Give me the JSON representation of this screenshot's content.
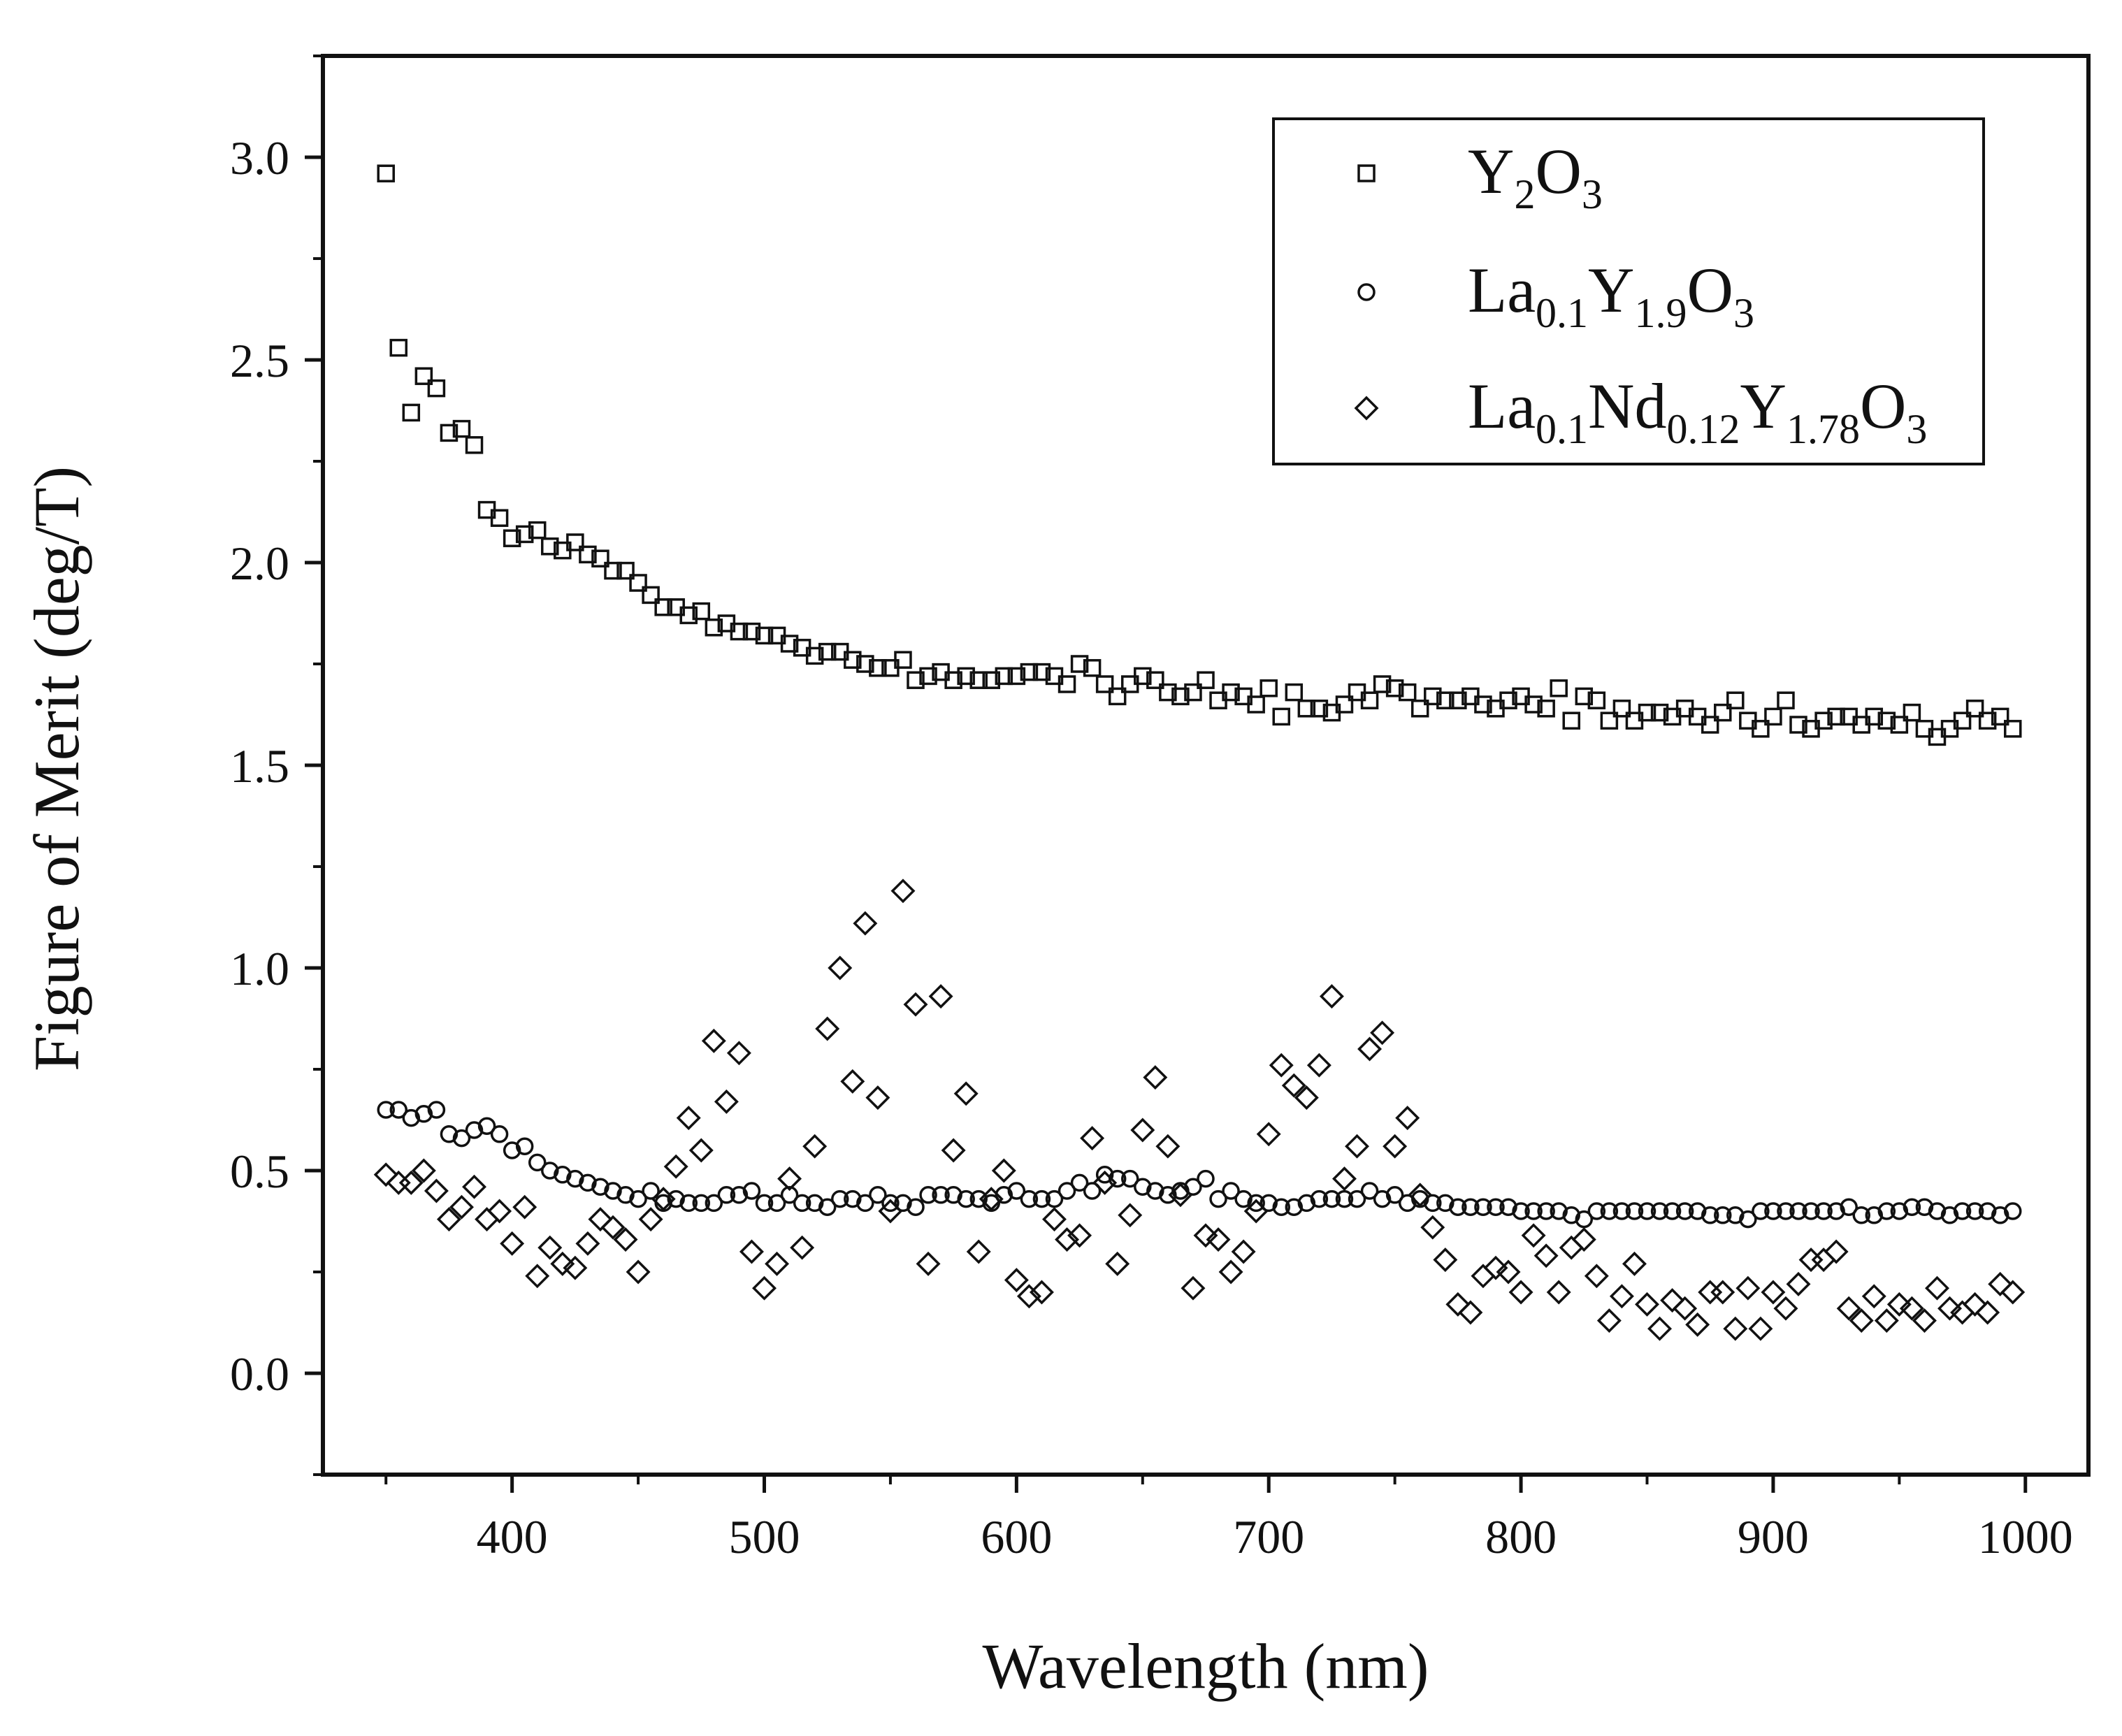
{
  "chart_data": {
    "type": "scatter",
    "title": "",
    "xlabel": "Wavelength (nm)",
    "ylabel": "Figure of Merit (deg/T)",
    "xlim": [
      325,
      1025
    ],
    "ylim": [
      -0.25,
      3.25
    ],
    "xticks": [
      400,
      500,
      600,
      700,
      800,
      900,
      1000
    ],
    "yticks": [
      0.0,
      0.5,
      1.0,
      1.5,
      2.0,
      2.5,
      3.0
    ],
    "xtick_labels": [
      "400",
      "500",
      "600",
      "700",
      "800",
      "900",
      "1000"
    ],
    "ytick_labels": [
      "0.0",
      "0.5",
      "1.0",
      "1.5",
      "2.0",
      "2.5",
      "3.0"
    ],
    "grid": false,
    "legend_position": "top-right",
    "series": [
      {
        "name": "Y2O3",
        "legend_parts": [
          [
            "Y",
            ""
          ],
          [
            "2",
            "sub"
          ],
          [
            "O",
            ""
          ],
          [
            "3",
            "sub"
          ]
        ],
        "marker": "square",
        "x": [
          350,
          355,
          360,
          365,
          370,
          375,
          380,
          385,
          390,
          395,
          400,
          405,
          410,
          415,
          420,
          425,
          430,
          435,
          440,
          445,
          450,
          455,
          460,
          465,
          470,
          475,
          480,
          485,
          490,
          495,
          500,
          505,
          510,
          515,
          520,
          525,
          530,
          535,
          540,
          545,
          550,
          555,
          560,
          565,
          570,
          575,
          580,
          585,
          590,
          595,
          600,
          605,
          610,
          615,
          620,
          625,
          630,
          635,
          640,
          645,
          650,
          655,
          660,
          665,
          670,
          675,
          680,
          685,
          690,
          695,
          700,
          705,
          710,
          715,
          720,
          725,
          730,
          735,
          740,
          745,
          750,
          755,
          760,
          765,
          770,
          775,
          780,
          785,
          790,
          795,
          800,
          805,
          810,
          815,
          820,
          825,
          830,
          835,
          840,
          845,
          850,
          855,
          860,
          865,
          870,
          875,
          880,
          885,
          890,
          895,
          900,
          905,
          910,
          915,
          920,
          925,
          930,
          935,
          940,
          945,
          950,
          955,
          960,
          965,
          970,
          975,
          980,
          985,
          990,
          995
        ],
        "y": [
          2.96,
          2.53,
          2.37,
          2.46,
          2.43,
          2.32,
          2.33,
          2.29,
          2.13,
          2.11,
          2.06,
          2.07,
          2.08,
          2.04,
          2.03,
          2.05,
          2.02,
          2.01,
          1.98,
          1.98,
          1.95,
          1.92,
          1.89,
          1.89,
          1.87,
          1.88,
          1.84,
          1.85,
          1.83,
          1.83,
          1.82,
          1.82,
          1.8,
          1.79,
          1.77,
          1.78,
          1.78,
          1.76,
          1.75,
          1.74,
          1.74,
          1.76,
          1.71,
          1.72,
          1.73,
          1.71,
          1.72,
          1.71,
          1.71,
          1.72,
          1.72,
          1.73,
          1.73,
          1.72,
          1.7,
          1.75,
          1.74,
          1.7,
          1.67,
          1.7,
          1.72,
          1.71,
          1.68,
          1.67,
          1.68,
          1.71,
          1.66,
          1.68,
          1.67,
          1.65,
          1.69,
          1.62,
          1.68,
          1.64,
          1.64,
          1.63,
          1.65,
          1.68,
          1.66,
          1.7,
          1.69,
          1.68,
          1.64,
          1.67,
          1.66,
          1.66,
          1.67,
          1.65,
          1.64,
          1.66,
          1.67,
          1.65,
          1.64,
          1.69,
          1.61,
          1.67,
          1.66,
          1.61,
          1.64,
          1.61,
          1.63,
          1.63,
          1.62,
          1.64,
          1.62,
          1.6,
          1.63,
          1.66,
          1.61,
          1.59,
          1.62,
          1.66,
          1.6,
          1.59,
          1.61,
          1.62,
          1.62,
          1.6,
          1.62,
          1.61,
          1.6,
          1.63,
          1.59,
          1.57,
          1.59,
          1.61,
          1.64,
          1.61,
          1.62,
          1.59
        ]
      },
      {
        "name": "La0.1Y1.9O3",
        "legend_parts": [
          [
            "La",
            ""
          ],
          [
            "0.1",
            "sub"
          ],
          [
            "Y",
            ""
          ],
          [
            "1.9",
            "sub"
          ],
          [
            "O",
            ""
          ],
          [
            "3",
            "sub"
          ]
        ],
        "marker": "circle",
        "x": [
          350,
          355,
          360,
          365,
          370,
          375,
          380,
          385,
          390,
          395,
          400,
          405,
          410,
          415,
          420,
          425,
          430,
          435,
          440,
          445,
          450,
          455,
          460,
          465,
          470,
          475,
          480,
          485,
          490,
          495,
          500,
          505,
          510,
          515,
          520,
          525,
          530,
          535,
          540,
          545,
          550,
          555,
          560,
          565,
          570,
          575,
          580,
          585,
          590,
          595,
          600,
          605,
          610,
          615,
          620,
          625,
          630,
          635,
          640,
          645,
          650,
          655,
          660,
          665,
          670,
          675,
          680,
          685,
          690,
          695,
          700,
          705,
          710,
          715,
          720,
          725,
          730,
          735,
          740,
          745,
          750,
          755,
          760,
          765,
          770,
          775,
          780,
          785,
          790,
          795,
          800,
          805,
          810,
          815,
          820,
          825,
          830,
          835,
          840,
          845,
          850,
          855,
          860,
          865,
          870,
          875,
          880,
          885,
          890,
          895,
          900,
          905,
          910,
          915,
          920,
          925,
          930,
          935,
          940,
          945,
          950,
          955,
          960,
          965,
          970,
          975,
          980,
          985,
          990,
          995
        ],
        "y": [
          0.65,
          0.65,
          0.63,
          0.64,
          0.65,
          0.59,
          0.58,
          0.6,
          0.61,
          0.59,
          0.55,
          0.56,
          0.52,
          0.5,
          0.49,
          0.48,
          0.47,
          0.46,
          0.45,
          0.44,
          0.43,
          0.45,
          0.42,
          0.43,
          0.42,
          0.42,
          0.42,
          0.44,
          0.44,
          0.45,
          0.42,
          0.42,
          0.44,
          0.42,
          0.42,
          0.41,
          0.43,
          0.43,
          0.42,
          0.44,
          0.42,
          0.42,
          0.41,
          0.44,
          0.44,
          0.44,
          0.43,
          0.43,
          0.42,
          0.44,
          0.45,
          0.43,
          0.43,
          0.43,
          0.45,
          0.47,
          0.45,
          0.49,
          0.48,
          0.48,
          0.46,
          0.45,
          0.44,
          0.45,
          0.46,
          0.48,
          0.43,
          0.45,
          0.43,
          0.42,
          0.42,
          0.41,
          0.41,
          0.42,
          0.43,
          0.43,
          0.43,
          0.43,
          0.45,
          0.43,
          0.44,
          0.42,
          0.43,
          0.42,
          0.42,
          0.41,
          0.41,
          0.41,
          0.41,
          0.41,
          0.4,
          0.4,
          0.4,
          0.4,
          0.39,
          0.38,
          0.4,
          0.4,
          0.4,
          0.4,
          0.4,
          0.4,
          0.4,
          0.4,
          0.4,
          0.39,
          0.39,
          0.39,
          0.38,
          0.4,
          0.4,
          0.4,
          0.4,
          0.4,
          0.4,
          0.4,
          0.41,
          0.39,
          0.39,
          0.4,
          0.4,
          0.41,
          0.41,
          0.4,
          0.39,
          0.4,
          0.4,
          0.4,
          0.39,
          0.4
        ]
      },
      {
        "name": "La0.1Nd0.12Y1.78O3",
        "legend_parts": [
          [
            "La",
            ""
          ],
          [
            "0.1",
            "sub"
          ],
          [
            "Nd",
            ""
          ],
          [
            "0.12",
            "sub"
          ],
          [
            "Y",
            ""
          ],
          [
            "1.78",
            "sub"
          ],
          [
            "O",
            ""
          ],
          [
            "3",
            "sub"
          ]
        ],
        "marker": "diamond",
        "x": [
          350,
          355,
          360,
          365,
          370,
          375,
          380,
          385,
          390,
          395,
          400,
          405,
          410,
          415,
          420,
          425,
          430,
          435,
          440,
          445,
          450,
          455,
          460,
          465,
          470,
          475,
          480,
          485,
          490,
          495,
          500,
          505,
          510,
          515,
          520,
          525,
          530,
          535,
          540,
          545,
          550,
          555,
          560,
          565,
          570,
          575,
          580,
          585,
          590,
          595,
          600,
          605,
          610,
          615,
          620,
          625,
          630,
          635,
          640,
          645,
          650,
          655,
          660,
          665,
          670,
          675,
          680,
          685,
          690,
          695,
          700,
          705,
          710,
          715,
          720,
          725,
          730,
          735,
          740,
          745,
          750,
          755,
          760,
          765,
          770,
          775,
          780,
          785,
          790,
          795,
          800,
          805,
          810,
          815,
          820,
          825,
          830,
          835,
          840,
          845,
          850,
          855,
          860,
          865,
          870,
          875,
          880,
          885,
          890,
          895,
          900,
          905,
          910,
          915,
          920,
          925,
          930,
          935,
          940,
          945,
          950,
          955,
          960,
          965,
          970,
          975,
          980,
          985,
          990,
          995
        ],
        "y": [
          0.49,
          0.47,
          0.47,
          0.5,
          0.45,
          0.38,
          0.41,
          0.46,
          0.38,
          0.4,
          0.32,
          0.41,
          0.24,
          0.31,
          0.27,
          0.26,
          0.32,
          0.38,
          0.36,
          0.33,
          0.25,
          0.38,
          0.43,
          0.51,
          0.63,
          0.55,
          0.82,
          0.67,
          0.79,
          0.3,
          0.21,
          0.27,
          0.48,
          0.31,
          0.56,
          0.85,
          1.0,
          0.72,
          1.11,
          0.68,
          0.4,
          1.19,
          0.91,
          0.27,
          0.93,
          0.55,
          0.69,
          0.3,
          0.43,
          0.5,
          0.23,
          0.19,
          0.2,
          0.38,
          0.33,
          0.34,
          0.58,
          0.47,
          0.27,
          0.39,
          0.6,
          0.73,
          0.56,
          0.44,
          0.21,
          0.34,
          0.33,
          0.25,
          0.3,
          0.4,
          0.59,
          0.76,
          0.71,
          0.68,
          0.76,
          0.93,
          0.48,
          0.56,
          0.8,
          0.84,
          0.56,
          0.63,
          0.44,
          0.36,
          0.28,
          0.17,
          0.15,
          0.24,
          0.26,
          0.25,
          0.2,
          0.34,
          0.29,
          0.2,
          0.31,
          0.33,
          0.24,
          0.13,
          0.19,
          0.27,
          0.17,
          0.11,
          0.18,
          0.16,
          0.12,
          0.2,
          0.2,
          0.11,
          0.21,
          0.11,
          0.2,
          0.16,
          0.22,
          0.28,
          0.28,
          0.3,
          0.16,
          0.13,
          0.19,
          0.13,
          0.17,
          0.16,
          0.13,
          0.21,
          0.16,
          0.15,
          0.17,
          0.15,
          0.22,
          0.2
        ]
      }
    ]
  }
}
